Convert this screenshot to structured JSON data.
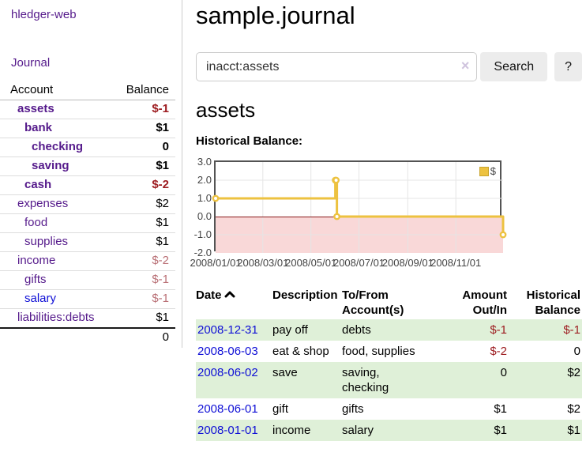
{
  "sidebar": {
    "brand": "hledger-web",
    "journal_label": "Journal",
    "accounts_table": {
      "headers": {
        "account": "Account",
        "balance": "Balance"
      },
      "rows": [
        {
          "name": "assets",
          "indent": 0,
          "in_account": true,
          "balance": "$-1",
          "balance_style": "negative"
        },
        {
          "name": "bank",
          "indent": 1,
          "in_account": true,
          "balance": "$1",
          "balance_style": "normal"
        },
        {
          "name": "checking",
          "indent": 2,
          "in_account": true,
          "balance": "0",
          "balance_style": "normal"
        },
        {
          "name": "saving",
          "indent": 2,
          "in_account": true,
          "balance": "$1",
          "balance_style": "normal"
        },
        {
          "name": "cash",
          "indent": 1,
          "in_account": true,
          "balance": "$-2",
          "balance_style": "negative"
        },
        {
          "name": "expenses",
          "indent": 0,
          "in_account": false,
          "balance": "$2",
          "balance_style": "normal"
        },
        {
          "name": "food",
          "indent": 1,
          "in_account": false,
          "balance": "$1",
          "balance_style": "normal"
        },
        {
          "name": "supplies",
          "indent": 1,
          "in_account": false,
          "balance": "$1",
          "balance_style": "normal"
        },
        {
          "name": "income",
          "indent": 0,
          "in_account": false,
          "balance": "$-2",
          "balance_style": "negative-soft"
        },
        {
          "name": "gifts",
          "indent": 1,
          "in_account": false,
          "balance": "$-1",
          "balance_style": "negative-soft"
        },
        {
          "name": "salary",
          "indent": 1,
          "in_account": false,
          "balance": "$-1",
          "balance_style": "negative-soft",
          "link_style": "unvisited"
        },
        {
          "name": "liabilities:debts",
          "indent": 0,
          "in_account": false,
          "balance": "$1",
          "balance_style": "normal"
        }
      ],
      "total": "0"
    }
  },
  "main": {
    "title": "sample.journal",
    "search": {
      "value": "inacct:assets",
      "clear_icon": "×",
      "button_label": "Search",
      "help_label": "?"
    },
    "account_heading": "assets",
    "chart_label": "Historical Balance:"
  },
  "chart_data": {
    "type": "line",
    "title": "Historical Balance",
    "legend": {
      "position": "top-right",
      "label": "$"
    },
    "series": [
      {
        "name": "$",
        "color": "#edc240",
        "step": true,
        "points": [
          [
            "2008-01-01",
            1
          ],
          [
            "2008-06-01",
            2
          ],
          [
            "2008-06-02",
            2
          ],
          [
            "2008-06-03",
            0
          ],
          [
            "2008-12-31",
            -1
          ]
        ]
      }
    ],
    "xlim": [
      "2008-01-01",
      "2008-12-31"
    ],
    "ylim": [
      -2,
      3
    ],
    "yticks": [
      "3.0",
      "2.0",
      "1.0",
      "0.0",
      "-1.0",
      "-2.0"
    ],
    "xticks": [
      "2008/01/01",
      "2008/03/01",
      "2008/05/01",
      "2008/07/01",
      "2008/09/01",
      "2008/11/01"
    ],
    "grid": true,
    "negative_region_color": "#f9d8d8",
    "zero_line_color": "#8b1a1a"
  },
  "transactions": {
    "headers": [
      "Date",
      "Description",
      "To/From Account(s)",
      "Amount Out/In",
      "Historical Balance"
    ],
    "sort_icon": "chevron-up",
    "rows": [
      {
        "date": "2008-12-31",
        "description": "pay off",
        "accounts": "debts",
        "amount": "$-1",
        "amount_negative": true,
        "balance": "$-1",
        "balance_negative": true,
        "shaded": true
      },
      {
        "date": "2008-06-03",
        "description": "eat & shop",
        "accounts": "food, supplies",
        "amount": "$-2",
        "amount_negative": true,
        "balance": "0",
        "balance_negative": false,
        "shaded": false
      },
      {
        "date": "2008-06-02",
        "description": "save",
        "accounts": "saving, checking",
        "amount": "0",
        "amount_negative": false,
        "balance": "$2",
        "balance_negative": false,
        "shaded": true
      },
      {
        "date": "2008-06-01",
        "description": "gift",
        "accounts": "gifts",
        "amount": "$1",
        "amount_negative": false,
        "balance": "$2",
        "balance_negative": false,
        "shaded": false
      },
      {
        "date": "2008-01-01",
        "description": "income",
        "accounts": "salary",
        "amount": "$1",
        "amount_negative": false,
        "balance": "$1",
        "balance_negative": false,
        "shaded": true
      }
    ]
  },
  "colors": {
    "link_visited": "#551a8b",
    "link_unvisited": "#0f0fd6",
    "negative_amount": "#9d1c20",
    "negative_amount_soft": "#b96f75",
    "row_shade_green": "#dff0d8",
    "series_gold": "#edc240",
    "negative_region_pink": "#f9d8d8",
    "zero_line_red": "#8b1a1a"
  }
}
